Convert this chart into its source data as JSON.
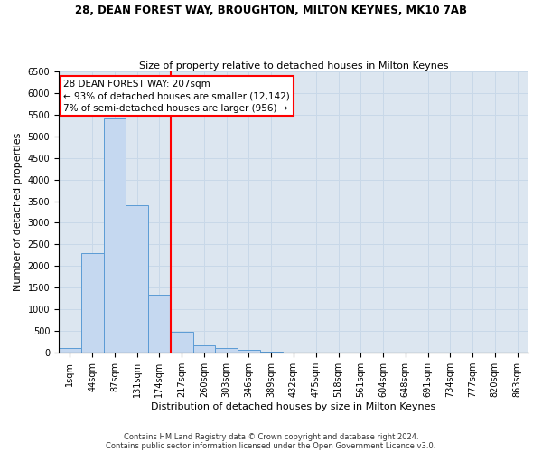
{
  "title_line1": "28, DEAN FOREST WAY, BROUGHTON, MILTON KEYNES, MK10 7AB",
  "title_line2": "Size of property relative to detached houses in Milton Keynes",
  "xlabel": "Distribution of detached houses by size in Milton Keynes",
  "ylabel": "Number of detached properties",
  "footer_line1": "Contains HM Land Registry data © Crown copyright and database right 2024.",
  "footer_line2": "Contains public sector information licensed under the Open Government Licence v3.0.",
  "bar_labels": [
    "1sqm",
    "44sqm",
    "87sqm",
    "131sqm",
    "174sqm",
    "217sqm",
    "260sqm",
    "303sqm",
    "346sqm",
    "389sqm",
    "432sqm",
    "475sqm",
    "518sqm",
    "561sqm",
    "604sqm",
    "648sqm",
    "691sqm",
    "734sqm",
    "777sqm",
    "820sqm",
    "863sqm"
  ],
  "bar_values": [
    100,
    2300,
    5400,
    3400,
    1350,
    480,
    175,
    100,
    60,
    20,
    10,
    5,
    3,
    2,
    1,
    0,
    0,
    0,
    0,
    0,
    0
  ],
  "bar_color": "#c5d8f0",
  "bar_edge_color": "#5b9bd5",
  "annotation_text": "28 DEAN FOREST WAY: 207sqm\n← 93% of detached houses are smaller (12,142)\n7% of semi-detached houses are larger (956) →",
  "annotation_box_color": "white",
  "annotation_box_edge": "red",
  "vline_color": "red",
  "vline_x": 4.5,
  "ylim": [
    0,
    6500
  ],
  "yticks": [
    0,
    500,
    1000,
    1500,
    2000,
    2500,
    3000,
    3500,
    4000,
    4500,
    5000,
    5500,
    6000,
    6500
  ],
  "grid_color": "#c8d8e8",
  "background_color": "#dce6f0",
  "title1_fontsize": 8.5,
  "title2_fontsize": 8,
  "ylabel_fontsize": 8,
  "xlabel_fontsize": 8,
  "tick_fontsize": 7,
  "footer_fontsize": 6,
  "annot_fontsize": 7.5
}
